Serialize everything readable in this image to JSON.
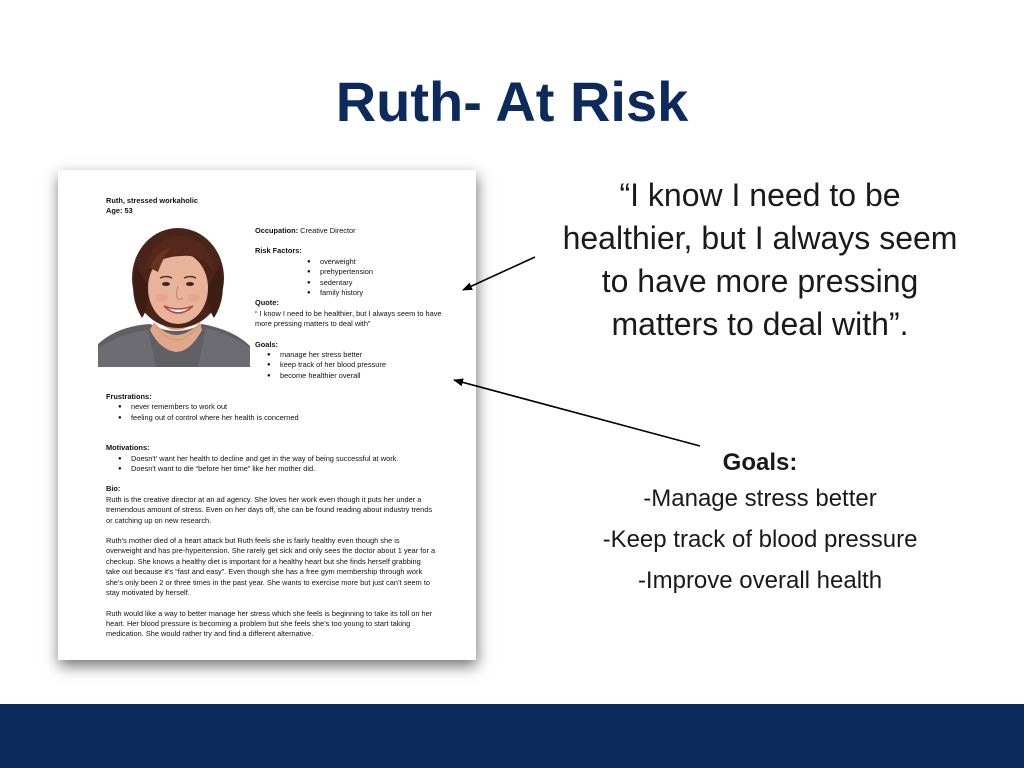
{
  "slide": {
    "title": "Ruth- At Risk",
    "quote_lines": [
      "“I know I need to be",
      "healthier, but I always seem",
      "to have more pressing",
      "matters to deal with”."
    ],
    "goals_title": "Goals:",
    "goals_items": [
      "-Manage stress better",
      "-Keep track of blood pressure",
      "-Improve overall health"
    ]
  },
  "persona_doc": {
    "name_line": "Ruth,  stressed workaholic",
    "age_line": "Age: 53",
    "occupation_label": "Occupation:",
    "occupation_value": " Creative Director",
    "risk_label": "Risk Factors:",
    "risk_items": [
      "overweight",
      "prehypertension",
      "sedentary",
      "family history"
    ],
    "quote_label": "Quote:",
    "quote_text": "“ I know I need to be healthier, but I always seem to have more pressing matters to deal with”",
    "goals_label": "Goals:",
    "goals_items": [
      "manage her stress better",
      "keep track of her blood pressure",
      "become healthier overall"
    ],
    "frustrations_label": "Frustrations:",
    "frustrations_items": [
      "never remembers to work out",
      "feeling out of control where her health is concerned"
    ],
    "motivations_label": "Motivations:",
    "motivations_items": [
      "Doesn't' want her health to decline and get in the way of being successful at work.",
      "Doesn't want to die “before her time” like her mother did."
    ],
    "bio_label": "Bio:",
    "bio_paragraphs": [
      "Ruth is the creative director at an ad agency. She loves her work even though it puts her under a tremendous amount of stress. Even on her days off, she can be found reading about industry trends or catching up on new research.",
      "Ruth’s mother died of a heart attack but Ruth feels she is fairly healthy even though she is overweight and has pre-hypertension. She rarely get sick and only sees the doctor about 1 year for a checkup.  She knows a healthy diet  is important for a healthy heart but she finds herself grabbing take out because it’s “fast and easy”. Even though she has a free gym membership through work she’s only been 2 or three times in the past year.  She wants to exercise more but just can’t seem to stay motivated by herself.",
      "Ruth would like a way to better manage her stress which she feels is beginning to take its toll on her heart. Her blood pressure is becoming a problem but she feels she’s too young to start taking medication. She would rather try and find a different alternative."
    ]
  },
  "colors": {
    "navy": "#0c2a5b"
  }
}
